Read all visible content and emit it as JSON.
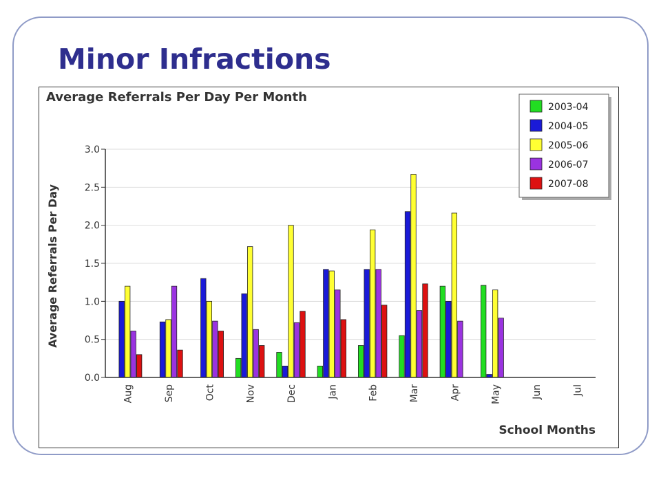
{
  "slide": {
    "title": "Minor Infractions"
  },
  "chart_data": {
    "type": "bar",
    "title": "Average Referrals Per Day Per Month",
    "xlabel": "School Months",
    "ylabel": "Average Referrals Per Day",
    "ylim": [
      0,
      3.0
    ],
    "yticks": [
      "0.0",
      "0.5",
      "1.0",
      "1.5",
      "2.0",
      "2.5",
      "3.0"
    ],
    "grid": true,
    "legend_position": "top-right",
    "categories": [
      "Aug",
      "Sep",
      "Oct",
      "Nov",
      "Dec",
      "Jan",
      "Feb",
      "Mar",
      "Apr",
      "May",
      "Jun",
      "Jul"
    ],
    "series": [
      {
        "name": "2003-04",
        "color": "#22dd22",
        "values": [
          null,
          null,
          null,
          0.25,
          0.33,
          0.15,
          0.42,
          0.55,
          1.2,
          1.21,
          null,
          null
        ]
      },
      {
        "name": "2004-05",
        "color": "#1a1ad8",
        "values": [
          1.0,
          0.73,
          1.3,
          1.1,
          0.15,
          1.42,
          1.42,
          2.18,
          1.0,
          0.04,
          null,
          null
        ]
      },
      {
        "name": "2005-06",
        "color": "#ffff33",
        "values": [
          1.2,
          0.76,
          1.0,
          1.72,
          2.0,
          1.4,
          1.94,
          2.67,
          2.16,
          1.15,
          null,
          null
        ]
      },
      {
        "name": "2006-07",
        "color": "#9a33e0",
        "values": [
          0.61,
          1.2,
          0.74,
          0.63,
          0.72,
          1.15,
          1.42,
          0.88,
          0.74,
          0.78,
          null,
          null
        ]
      },
      {
        "name": "2007-08",
        "color": "#dd1111",
        "values": [
          0.3,
          0.36,
          0.61,
          0.42,
          0.87,
          0.76,
          0.95,
          1.23,
          null,
          null,
          null,
          null
        ]
      }
    ]
  }
}
